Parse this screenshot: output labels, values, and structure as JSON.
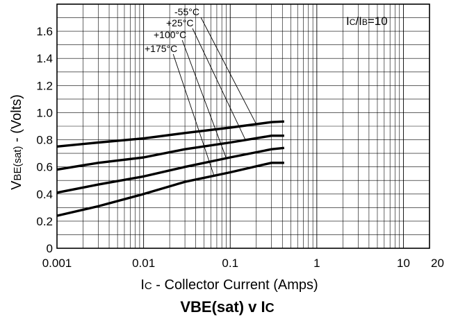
{
  "chart_data": {
    "type": "line",
    "title": "VBE(sat) v IC",
    "title_main": "VBE(sat) v I",
    "title_sub": "C",
    "xlabel": "IC - Collector Current (Amps)",
    "xlabel_main": "I",
    "xlabel_sub": "C",
    "xlabel_rest": " - Collector Current (Amps)",
    "ylabel": "VBE(sat) - (Volts)",
    "ylabel_main": "V",
    "ylabel_sub": "BE(sat)",
    "ylabel_rest": " - (Volts)",
    "condition": "IC/IB=10",
    "condition_parts": [
      "I",
      "C",
      "/I",
      "B",
      "=10"
    ],
    "x_scale": "log",
    "xlim": [
      0.001,
      20
    ],
    "ylim": [
      0,
      1.8
    ],
    "x_ticks": [
      {
        "value": 0.001,
        "label": "0.001"
      },
      {
        "value": 0.01,
        "label": "0.01"
      },
      {
        "value": 0.1,
        "label": "0.1"
      },
      {
        "value": 1,
        "label": "1"
      },
      {
        "value": 10,
        "label": "10"
      },
      {
        "value": 20,
        "label": "20"
      }
    ],
    "y_ticks": [
      {
        "value": 0,
        "label": "0"
      },
      {
        "value": 0.2,
        "label": "0.2"
      },
      {
        "value": 0.4,
        "label": "0.4"
      },
      {
        "value": 0.6,
        "label": "0.6"
      },
      {
        "value": 0.8,
        "label": "0.8"
      },
      {
        "value": 1.0,
        "label": "1.0"
      },
      {
        "value": 1.2,
        "label": "1.2"
      },
      {
        "value": 1.4,
        "label": "1.4"
      },
      {
        "value": 1.6,
        "label": "1.6"
      }
    ],
    "grid": true,
    "series": [
      {
        "name": "-55°C",
        "points": [
          [
            0.001,
            0.75
          ],
          [
            0.003,
            0.78
          ],
          [
            0.01,
            0.81
          ],
          [
            0.03,
            0.85
          ],
          [
            0.1,
            0.89
          ],
          [
            0.3,
            0.93
          ],
          [
            0.42,
            0.935
          ]
        ]
      },
      {
        "name": "+25°C",
        "points": [
          [
            0.001,
            0.58
          ],
          [
            0.003,
            0.63
          ],
          [
            0.01,
            0.67
          ],
          [
            0.03,
            0.73
          ],
          [
            0.1,
            0.78
          ],
          [
            0.3,
            0.83
          ],
          [
            0.42,
            0.83
          ]
        ]
      },
      {
        "name": "+100°C",
        "points": [
          [
            0.001,
            0.41
          ],
          [
            0.003,
            0.47
          ],
          [
            0.01,
            0.53
          ],
          [
            0.03,
            0.6
          ],
          [
            0.1,
            0.67
          ],
          [
            0.3,
            0.73
          ],
          [
            0.42,
            0.74
          ]
        ]
      },
      {
        "name": "+175°C",
        "points": [
          [
            0.001,
            0.24
          ],
          [
            0.003,
            0.31
          ],
          [
            0.01,
            0.4
          ],
          [
            0.03,
            0.49
          ],
          [
            0.1,
            0.56
          ],
          [
            0.3,
            0.63
          ],
          [
            0.42,
            0.63
          ]
        ]
      }
    ],
    "annotations": [
      {
        "text": "-55°C",
        "series": "-55°C"
      },
      {
        "text": "+25°C",
        "series": "+25°C"
      },
      {
        "text": "+100°C",
        "series": "+100°C"
      },
      {
        "text": "+175°C",
        "series": "+175°C"
      }
    ]
  }
}
